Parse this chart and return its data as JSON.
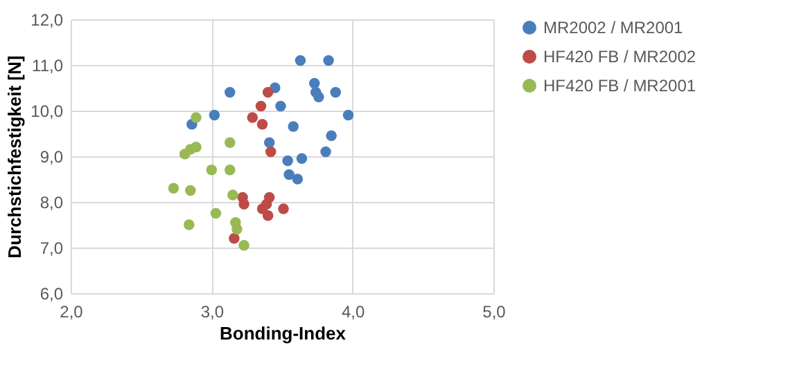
{
  "chart_data": {
    "type": "scatter",
    "xlabel": "Bonding-Index",
    "ylabel": "Durchstichfestigkeit [N]",
    "xlim": [
      2,
      5
    ],
    "xticks": [
      {
        "value": 2,
        "label": "2,0"
      },
      {
        "value": 3,
        "label": "3,0"
      },
      {
        "value": 4,
        "label": "4,0"
      },
      {
        "value": 5,
        "label": "5,0"
      }
    ],
    "ylim": [
      6,
      12
    ],
    "yticks": [
      {
        "value": 6,
        "label": "6,0"
      },
      {
        "value": 7,
        "label": "7,0"
      },
      {
        "value": 8,
        "label": "8,0"
      },
      {
        "value": 9,
        "label": "9,0"
      },
      {
        "value": 10,
        "label": "10,0"
      },
      {
        "value": 11,
        "label": "11,0"
      },
      {
        "value": 12,
        "label": "12,0"
      }
    ],
    "grid": true,
    "legend": "right",
    "marker": "circle",
    "series": [
      {
        "name": "MR2002 / MR2001",
        "color": "#4a7ebb",
        "x": [
          3.63,
          3.83,
          3.73,
          3.74,
          3.76,
          3.88,
          3.97,
          3.58,
          3.85,
          3.81,
          3.64,
          3.54,
          3.13,
          3.45,
          3.49,
          3.02,
          2.86,
          3.41,
          3.55,
          3.61
        ],
        "values": [
          11.1,
          11.1,
          10.6,
          10.4,
          10.3,
          10.4,
          9.9,
          9.65,
          9.45,
          9.1,
          8.95,
          8.9,
          10.4,
          10.5,
          10.1,
          9.9,
          9.7,
          9.3,
          8.6,
          8.5
        ]
      },
      {
        "name": "HF420 FB / MR2002",
        "color": "#be4b48",
        "x": [
          3.4,
          3.35,
          3.29,
          3.36,
          3.42,
          3.22,
          3.23,
          3.41,
          3.39,
          3.36,
          3.4,
          3.51,
          3.16
        ],
        "values": [
          10.4,
          10.1,
          9.85,
          9.7,
          9.1,
          8.1,
          7.95,
          8.1,
          7.95,
          7.85,
          7.7,
          7.85,
          7.2
        ]
      },
      {
        "name": "HF420 FB / MR2001",
        "color": "#98b954",
        "x": [
          2.89,
          2.81,
          2.85,
          2.89,
          3.13,
          3.0,
          3.13,
          2.73,
          2.85,
          3.15,
          3.03,
          2.84,
          3.17,
          3.18,
          3.23
        ],
        "values": [
          9.85,
          9.05,
          9.15,
          9.2,
          9.3,
          8.7,
          8.7,
          8.3,
          8.25,
          8.15,
          7.75,
          7.5,
          7.55,
          7.4,
          7.05
        ]
      }
    ]
  }
}
